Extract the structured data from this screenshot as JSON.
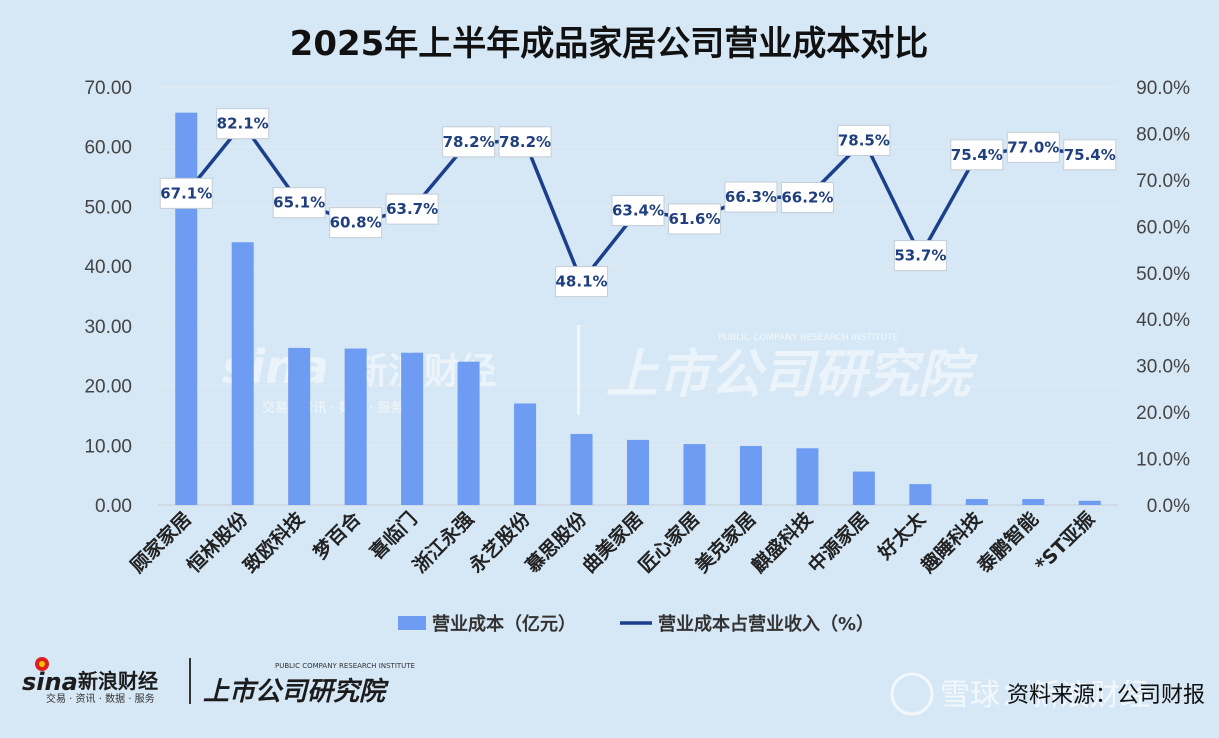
{
  "chart_data": {
    "type": "bar",
    "title": "2025年上半年成品家居公司营业成本对比",
    "categories": [
      "顾家家居",
      "恒林股份",
      "致欧科技",
      "梦百合",
      "喜临门",
      "浙江永强",
      "永艺股份",
      "慕思股份",
      "曲美家居",
      "匠心家居",
      "美克家居",
      "麒盛科技",
      "中源家居",
      "好太太",
      "趣睡科技",
      "泰鹏智能",
      "*ST亚振"
    ],
    "series": [
      {
        "name": "营业成本（亿元）",
        "type": "bar",
        "axis": "left",
        "color": "#6d9cf2",
        "values": [
          65.7,
          44.0,
          26.3,
          26.2,
          25.5,
          24.0,
          17.0,
          11.9,
          10.9,
          10.2,
          9.9,
          9.5,
          5.6,
          3.5,
          1.0,
          1.0,
          0.7
        ]
      },
      {
        "name": "营业成本占营业收入（%）",
        "type": "line",
        "axis": "right",
        "color": "#1b3f8b",
        "values": [
          67.1,
          82.1,
          65.1,
          60.8,
          63.7,
          78.2,
          78.2,
          48.1,
          63.4,
          61.6,
          66.3,
          66.2,
          78.5,
          53.7,
          75.4,
          77.0,
          75.4
        ],
        "labels": [
          "67.1%",
          "82.1%",
          "65.1%",
          "60.8%",
          "63.7%",
          "78.2%",
          "78.2%",
          "48.1%",
          "63.4%",
          "61.6%",
          "66.3%",
          "66.2%",
          "78.5%",
          "53.7%",
          "75.4%",
          "77.0%",
          "75.4%"
        ]
      }
    ],
    "left_axis": {
      "ylim": [
        0,
        70
      ],
      "ticks": [
        "0.00",
        "10.00",
        "20.00",
        "30.00",
        "40.00",
        "50.00",
        "60.00",
        "70.00"
      ]
    },
    "right_axis": {
      "ylim": [
        0,
        90
      ],
      "ticks": [
        "0.0%",
        "10.0%",
        "20.0%",
        "30.0%",
        "40.0%",
        "50.0%",
        "60.0%",
        "70.0%",
        "80.0%",
        "90.0%"
      ]
    },
    "grid": true,
    "legend_position": "bottom"
  },
  "footer": {
    "source": "资料来源：公司财报",
    "sina_logo": "sina",
    "sina_cn": "新浪财经",
    "sina_sub": "交易 · 资讯 · 数据 · 服务",
    "institute_cn": "上市公司研究院",
    "institute_en": "PUBLIC COMPANY RESEARCH INSTITUTE",
    "xueqiu": "雪球：新浪财经"
  },
  "watermark": {
    "sina_logo": "sina",
    "sina_cn": "新浪财经",
    "sina_sub": "交易 · 资讯 · 数据 · 服务",
    "institute_cn": "上市公司研究院",
    "institute_en": "PUBLIC COMPANY RESEARCH INSTITUTE"
  }
}
